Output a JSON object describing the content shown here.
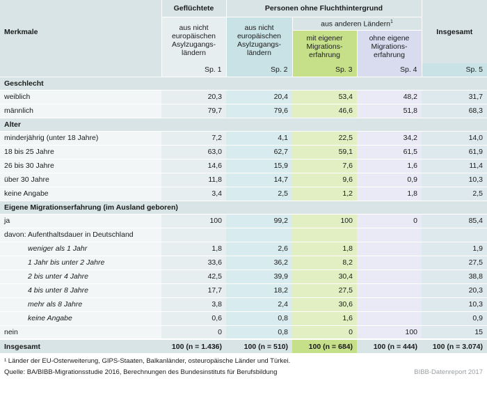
{
  "header": {
    "merkmale": "Merkmale",
    "gefluechtete": "Geflüchtete",
    "personen_ohne": "Personen ohne Fluchthintergrund",
    "aus_anderen": "aus anderen Ländern",
    "aus_anderen_sup": "1",
    "insgesamt": "Insgesamt",
    "col1_sub": "aus nicht europäischen Asylzugangs-ländern",
    "col2_sub": "aus nicht europäischen Asylzugangs-ländern",
    "col3_sub": "mit eigener Migrations-erfahrung",
    "col4_sub": "ohne eigene Migrations-erfahrung",
    "sp": [
      "Sp. 1",
      "Sp. 2",
      "Sp. 3",
      "Sp. 4",
      "Sp. 5"
    ]
  },
  "sections": {
    "geschlecht": {
      "title": "Geschlecht",
      "rows": [
        {
          "label": "weiblich",
          "values": [
            "20,3",
            "20,4",
            "53,4",
            "48,2",
            "31,7"
          ]
        },
        {
          "label": "männlich",
          "values": [
            "79,7",
            "79,6",
            "46,6",
            "51,8",
            "68,3"
          ]
        }
      ]
    },
    "alter": {
      "title": "Alter",
      "rows": [
        {
          "label": "minderjährig (unter 18 Jahre)",
          "values": [
            "7,2",
            "4,1",
            "22,5",
            "34,2",
            "14,0"
          ]
        },
        {
          "label": "18 bis 25 Jahre",
          "values": [
            "63,0",
            "62,7",
            "59,1",
            "61,5",
            "61,9"
          ]
        },
        {
          "label": "26 bis 30 Jahre",
          "values": [
            "14,6",
            "15,9",
            "7,6",
            "1,6",
            "11,4"
          ]
        },
        {
          "label": "über 30 Jahre",
          "values": [
            "11,8",
            "14,7",
            "9,6",
            "0,9",
            "10,3"
          ]
        },
        {
          "label": "keine Angabe",
          "values": [
            "3,4",
            "2,5",
            "1,2",
            "1,8",
            "2,5"
          ]
        }
      ]
    },
    "migration": {
      "title": "Eigene Migrationserfahrung (im Ausland geboren)",
      "rows": [
        {
          "label": "ja",
          "values": [
            "100",
            "99,2",
            "100",
            "0",
            "85,4"
          ]
        },
        {
          "label": "davon: Aufenthaltsdauer in Deutschland",
          "values": [
            "",
            "",
            "",
            "",
            ""
          ]
        },
        {
          "label": "weniger als 1 Jahr",
          "values": [
            "1,8",
            "2,6",
            "1,8",
            "",
            "1,9"
          ]
        },
        {
          "label": "1 Jahr bis unter 2 Jahre",
          "values": [
            "33,6",
            "36,2",
            "8,2",
            "",
            "27,5"
          ]
        },
        {
          "label": "2 bis unter 4 Jahre",
          "values": [
            "42,5",
            "39,9",
            "30,4",
            "",
            "38,8"
          ]
        },
        {
          "label": "4 bis unter 8 Jahre",
          "values": [
            "17,7",
            "18,2",
            "27,5",
            "",
            "20,3"
          ]
        },
        {
          "label": "mehr als 8 Jahre",
          "values": [
            "3,8",
            "2,4",
            "30,6",
            "",
            "10,3"
          ]
        },
        {
          "label": "keine Angabe",
          "values": [
            "0,6",
            "0,8",
            "1,6",
            "",
            "0,9"
          ]
        },
        {
          "label": "nein",
          "values": [
            "0",
            "0,8",
            "0",
            "100",
            "15"
          ]
        }
      ]
    }
  },
  "total": {
    "label": "Insgesamt",
    "values": [
      "100 (n = 1.436)",
      "100 (n = 510)",
      "100 (n = 684)",
      "100 (n = 444)",
      "100 (n = 3.074)"
    ]
  },
  "footnote": "¹ Länder der EU-Osterweiterung, GIPS-Staaten, Balkanländer, osteuropäische Länder und Türkei.",
  "source": "Quelle: BA/BIBB-Migrationsstudie 2016, Berechnungen des Bundesinstituts für Berufsbildung",
  "report": "BIBB-Datenreport 2017"
}
